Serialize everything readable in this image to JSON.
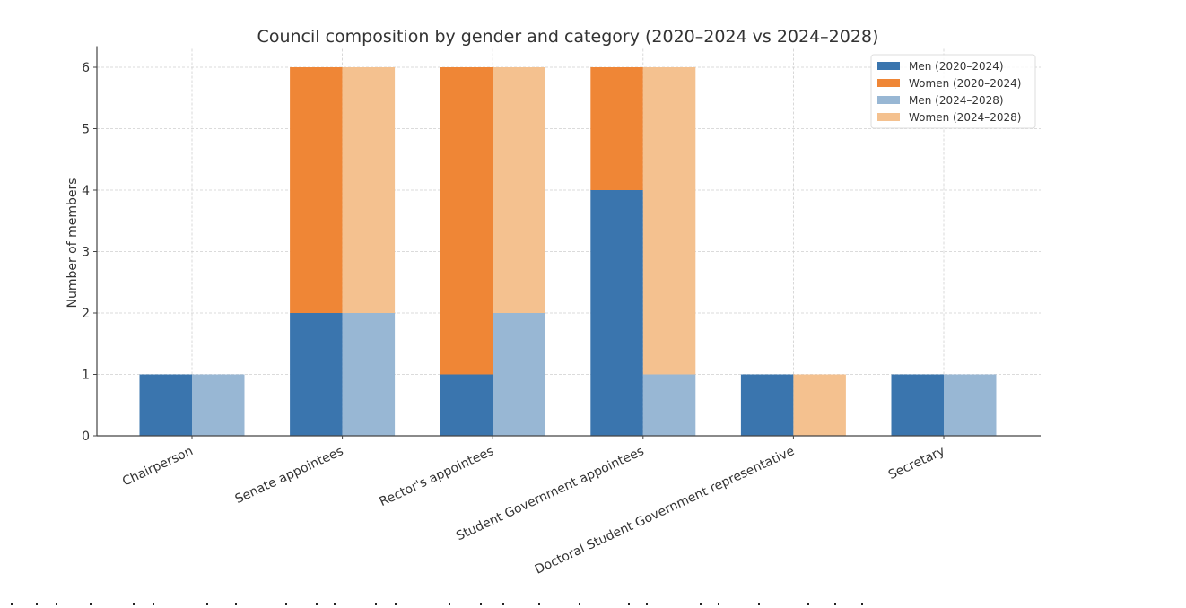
{
  "chart_data": {
    "type": "bar",
    "stacked": true,
    "grouped": true,
    "title": "Council composition by gender and category (2020–2024 vs 2024–2028)",
    "xlabel": "",
    "ylabel": "Number of members",
    "ylim": [
      0,
      6.3
    ],
    "yticks": [
      0,
      1,
      2,
      3,
      4,
      5,
      6
    ],
    "grid": true,
    "legend_position": "top-right",
    "categories": [
      "Chairperson",
      "Senate appointees",
      "Rector's appointees",
      "Student Government appointees",
      "Doctoral Student Government representative",
      "Secretary"
    ],
    "series": [
      {
        "name": "Men (2020–2024)",
        "period": "2020–2024",
        "group": 0,
        "stack_order": 0,
        "color": "#3a75ae",
        "values": [
          1,
          2,
          1,
          4,
          1,
          1
        ]
      },
      {
        "name": "Women (2020–2024)",
        "period": "2020–2024",
        "group": 0,
        "stack_order": 1,
        "color": "#ef8636",
        "values": [
          0,
          4,
          5,
          2,
          0,
          0
        ]
      },
      {
        "name": "Men (2024–2028)",
        "period": "2024–2028",
        "group": 1,
        "stack_order": 0,
        "color": "#98b7d4",
        "values": [
          1,
          2,
          2,
          1,
          0,
          1
        ]
      },
      {
        "name": "Women (2024–2028)",
        "period": "2024–2028",
        "group": 1,
        "stack_order": 1,
        "color": "#f4c18f",
        "values": [
          0,
          4,
          4,
          5,
          1,
          0
        ]
      }
    ]
  }
}
